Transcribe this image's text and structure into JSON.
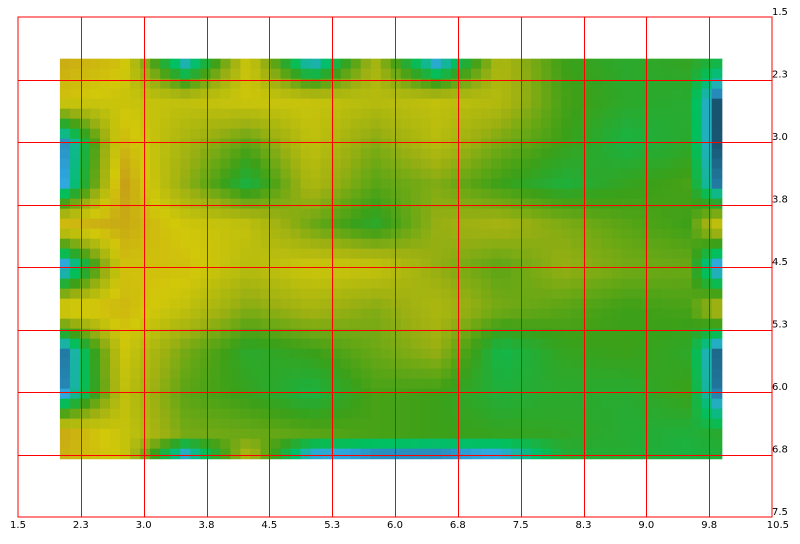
{
  "chart_data": {
    "type": "heatmap",
    "title": "",
    "xlabel": "",
    "ylabel": "",
    "xlim": [
      1.5,
      10.5
    ],
    "ylim": [
      1.5,
      7.5
    ],
    "y_inverted": true,
    "grid": true,
    "grid_color": "#ff0000",
    "x_tick_values": [
      2.25,
      3.0,
      3.75,
      4.5,
      5.25,
      6.0,
      6.75,
      7.5,
      8.25,
      9.0,
      9.75
    ],
    "x_tick_labels": [
      "1.5",
      "2.3",
      "3.0",
      "3.8",
      "4.5",
      "5.3",
      "6.0",
      "6.8",
      "7.5",
      "8.3",
      "9.0",
      "9.8",
      "10.5"
    ],
    "y_tick_values": [
      2.25,
      3.0,
      3.75,
      4.5,
      5.25,
      6.0,
      6.75
    ],
    "y_tick_labels": [
      "1.5",
      "2.3",
      "3.0",
      "3.8",
      "4.5",
      "5.3",
      "6.0",
      "6.8",
      "7.5"
    ],
    "x_label_values": [
      1.5,
      2.25,
      3.0,
      3.75,
      4.5,
      5.25,
      6.0,
      6.75,
      7.5,
      8.25,
      9.0,
      9.75,
      10.5
    ],
    "y_label_values": [
      1.5,
      2.25,
      3.0,
      3.75,
      4.5,
      5.25,
      6.0,
      6.75,
      7.5
    ],
    "data_extent": {
      "x": [
        2.0,
        9.9
      ],
      "y": [
        2.0,
        6.8
      ]
    },
    "colorscale": [
      "#000000",
      "#2fa8e0",
      "#00c060",
      "#3ca018",
      "#9cb012",
      "#d2c80a",
      "#c08c1e"
    ],
    "z_range": [
      0,
      1
    ],
    "x": [
      2.0,
      2.75,
      3.5,
      4.25,
      5.0,
      5.75,
      6.5,
      7.25,
      8.0,
      8.75,
      9.5,
      9.9
    ],
    "y": [
      2.0,
      2.5,
      3.0,
      3.5,
      4.0,
      4.5,
      5.0,
      5.5,
      6.0,
      6.5,
      6.8
    ],
    "z": [
      [
        0.92,
        0.86,
        0.15,
        0.82,
        0.12,
        0.7,
        0.1,
        0.72,
        0.5,
        0.45,
        0.48,
        0.42
      ],
      [
        0.85,
        0.8,
        0.78,
        0.82,
        0.8,
        0.75,
        0.78,
        0.74,
        0.52,
        0.46,
        0.44,
        0.02
      ],
      [
        0.08,
        0.88,
        0.7,
        0.55,
        0.78,
        0.62,
        0.75,
        0.6,
        0.5,
        0.4,
        0.45,
        0.02
      ],
      [
        0.1,
        0.95,
        0.65,
        0.4,
        0.72,
        0.55,
        0.62,
        0.5,
        0.42,
        0.48,
        0.52,
        0.05
      ],
      [
        0.9,
        0.92,
        0.82,
        0.78,
        0.58,
        0.45,
        0.66,
        0.7,
        0.62,
        0.55,
        0.5,
        0.85
      ],
      [
        0.05,
        0.85,
        0.86,
        0.75,
        0.82,
        0.8,
        0.65,
        0.55,
        0.66,
        0.6,
        0.58,
        0.04
      ],
      [
        0.9,
        0.88,
        0.78,
        0.62,
        0.7,
        0.62,
        0.72,
        0.6,
        0.55,
        0.5,
        0.52,
        0.78
      ],
      [
        0.06,
        0.82,
        0.6,
        0.45,
        0.5,
        0.58,
        0.66,
        0.38,
        0.48,
        0.5,
        0.46,
        0.04
      ],
      [
        0.08,
        0.78,
        0.55,
        0.48,
        0.4,
        0.52,
        0.5,
        0.42,
        0.45,
        0.44,
        0.5,
        0.05
      ],
      [
        0.92,
        0.8,
        0.6,
        0.58,
        0.55,
        0.52,
        0.5,
        0.48,
        0.47,
        0.44,
        0.42,
        0.45
      ],
      [
        0.9,
        0.82,
        0.1,
        0.75,
        0.1,
        0.05,
        0.05,
        0.1,
        0.42,
        0.44,
        0.4,
        0.42
      ]
    ]
  }
}
